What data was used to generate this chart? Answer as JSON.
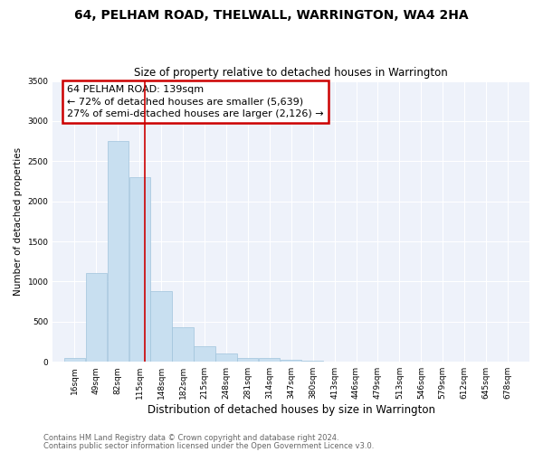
{
  "title": "64, PELHAM ROAD, THELWALL, WARRINGTON, WA4 2HA",
  "subtitle": "Size of property relative to detached houses in Warrington",
  "xlabel": "Distribution of detached houses by size in Warrington",
  "ylabel": "Number of detached properties",
  "footer1": "Contains HM Land Registry data © Crown copyright and database right 2024.",
  "footer2": "Contains public sector information licensed under the Open Government Licence v3.0.",
  "bar_edges": [
    16,
    49,
    82,
    115,
    148,
    181,
    214,
    247,
    280,
    313,
    346,
    379,
    412,
    445,
    478,
    511,
    544,
    577,
    610,
    643,
    676
  ],
  "bar_heights": [
    50,
    1110,
    2750,
    2300,
    880,
    430,
    190,
    100,
    50,
    50,
    30,
    10,
    0,
    0,
    0,
    0,
    0,
    0,
    0,
    0
  ],
  "bar_color": "#c8dff0",
  "bar_edgecolor": "#a0c4dc",
  "vline_x": 139,
  "vline_color": "#cc0000",
  "annotation_line1": "64 PELHAM ROAD: 139sqm",
  "annotation_line2": "← 72% of detached houses are smaller (5,639)",
  "annotation_line3": "27% of semi-detached houses are larger (2,126) →",
  "annotation_box_color": "#cc0000",
  "annotation_bg": "#ffffff",
  "ylim": [
    0,
    3500
  ],
  "yticks": [
    0,
    500,
    1000,
    1500,
    2000,
    2500,
    3000,
    3500
  ],
  "xtick_labels": [
    "16sqm",
    "49sqm",
    "82sqm",
    "115sqm",
    "148sqm",
    "182sqm",
    "215sqm",
    "248sqm",
    "281sqm",
    "314sqm",
    "347sqm",
    "380sqm",
    "413sqm",
    "446sqm",
    "479sqm",
    "513sqm",
    "546sqm",
    "579sqm",
    "612sqm",
    "645sqm",
    "678sqm"
  ],
  "title_fontsize": 10,
  "subtitle_fontsize": 8.5,
  "xlabel_fontsize": 8.5,
  "ylabel_fontsize": 7.5,
  "tick_fontsize": 6.5,
  "annotation_fontsize": 8,
  "footer_fontsize": 6,
  "bg_color": "#ffffff",
  "plot_bg_color": "#eef2fa",
  "grid_color": "#ffffff"
}
